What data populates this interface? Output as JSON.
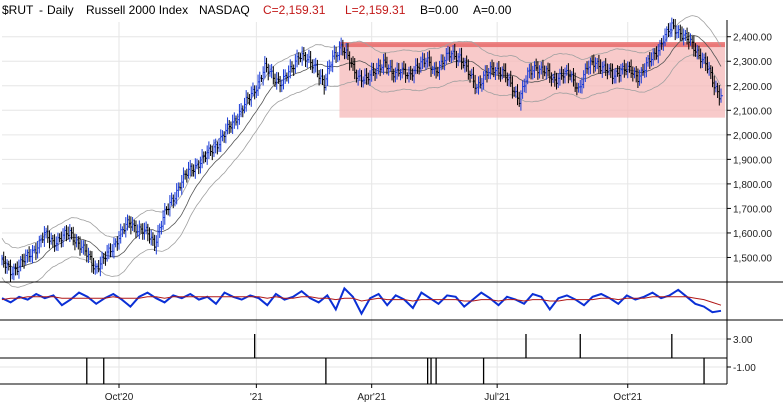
{
  "header": {
    "symbol": "$RUT",
    "sep1": "-",
    "period": "Daily",
    "name": "Russell 2000 Index",
    "exchange": "NASDAQ",
    "close_label": "C=2,159.31",
    "last_label": "L=2,159.31",
    "bid_label": "B=0.00",
    "ask_label": "A=0.00"
  },
  "colors": {
    "bars_up": "#1a3bd6",
    "bars_down": "#000000",
    "band": "#f5b8b8",
    "band_top": "#e86a6a",
    "channel": "#a0a0a0",
    "ma": "#555555",
    "oscillator": "#0a2fd6",
    "signal": "#b01818",
    "grid": "#e6e6e6"
  },
  "chart_data": [
    {
      "type": "line",
      "panel": "price",
      "title": "$RUT - Daily Russell 2000 Index NASDAQ",
      "series": [
        {
          "values": [
            [
              1,
              1480
            ],
            [
              6,
              1440
            ],
            [
              11,
              1470
            ],
            [
              16,
              1500
            ],
            [
              21,
              1540
            ],
            [
              26,
              1590
            ],
            [
              31,
              1565
            ],
            [
              36,
              1580
            ],
            [
              41,
              1600
            ],
            [
              46,
              1560
            ],
            [
              51,
              1510
            ],
            [
              56,
              1460
            ],
            [
              61,
              1490
            ],
            [
              66,
              1540
            ],
            [
              71,
              1600
            ],
            [
              76,
              1640
            ],
            [
              81,
              1620
            ],
            [
              86,
              1600
            ],
            [
              91,
              1560
            ],
            [
              96,
              1660
            ],
            [
              101,
              1730
            ],
            [
              106,
              1800
            ],
            [
              111,
              1850
            ],
            [
              116,
              1880
            ],
            [
              121,
              1910
            ],
            [
              126,
              1950
            ],
            [
              131,
              1990
            ],
            [
              136,
              2040
            ],
            [
              141,
              2090
            ],
            [
              146,
              2140
            ],
            [
              151,
              2200
            ],
            [
              156,
              2270
            ],
            [
              161,
              2240
            ],
            [
              166,
              2210
            ],
            [
              171,
              2260
            ],
            [
              176,
              2330
            ],
            [
              181,
              2300
            ],
            [
              186,
              2280
            ],
            [
              191,
              2200
            ],
            [
              196,
              2320
            ],
            [
              201,
              2360
            ],
            [
              206,
              2300
            ],
            [
              211,
              2240
            ],
            [
              216,
              2220
            ],
            [
              221,
              2270
            ],
            [
              226,
              2290
            ],
            [
              231,
              2250
            ],
            [
              236,
              2270
            ],
            [
              241,
              2230
            ],
            [
              246,
              2290
            ],
            [
              251,
              2300
            ],
            [
              256,
              2260
            ],
            [
              261,
              2300
            ],
            [
              266,
              2330
            ],
            [
              271,
              2320
            ],
            [
              276,
              2250
            ],
            [
              281,
              2200
            ],
            [
              286,
              2240
            ],
            [
              291,
              2270
            ],
            [
              296,
              2260
            ],
            [
              301,
              2200
            ],
            [
              306,
              2150
            ],
            [
              311,
              2240
            ],
            [
              316,
              2280
            ],
            [
              321,
              2260
            ],
            [
              326,
              2220
            ],
            [
              331,
              2250
            ],
            [
              336,
              2240
            ],
            [
              341,
              2190
            ],
            [
              346,
              2270
            ],
            [
              351,
              2300
            ],
            [
              356,
              2270
            ],
            [
              361,
              2240
            ],
            [
              366,
              2270
            ],
            [
              371,
              2260
            ],
            [
              376,
              2240
            ],
            [
              381,
              2280
            ],
            [
              386,
              2330
            ],
            [
              391,
              2390
            ],
            [
              396,
              2440
            ],
            [
              401,
              2420
            ],
            [
              406,
              2380
            ],
            [
              411,
              2340
            ],
            [
              416,
              2290
            ],
            [
              421,
              2200
            ],
            [
              425,
              2159.31
            ]
          ]
        }
      ],
      "ylim": [
        1400,
        2460
      ],
      "y_ticks": [
        "1,500.00",
        "1,600.00",
        "1,700.00",
        "1,800.00",
        "1,900.00",
        "2,000.00",
        "2,100.00",
        "2,200.00",
        "2,300.00",
        "2,400.00"
      ],
      "y_tick_values": [
        1500,
        1600,
        1700,
        1800,
        1900,
        2000,
        2100,
        2200,
        2300,
        2400
      ],
      "x_tick_labels": [
        "Oct'20",
        "'21",
        "Apr'21",
        "Jul'21",
        "Oct'21"
      ],
      "x_tick_index": [
        70,
        151,
        219,
        293,
        370
      ],
      "shaded_range": {
        "y_from": 2070,
        "y_to": 2370,
        "x_from": 200,
        "x_to": 425
      },
      "grid": true
    },
    {
      "type": "line",
      "panel": "oscillator",
      "series": [
        {
          "values": [
            0.2,
            -0.1,
            0.3,
            0.1,
            0.5,
            0.2,
            0.4,
            -0.3,
            0.1,
            0.6,
            0.3,
            -0.2,
            0.2,
            0.5,
            0.1,
            -0.4,
            0.3,
            0.6,
            0.2,
            -0.1,
            0.4,
            0.2,
            0.5,
            0.1,
            0.3,
            -0.2,
            0.6,
            0.3,
            0.1,
            0.4,
            0.2,
            -0.3,
            0.5,
            0.1,
            0.3,
            0.7,
            0.2,
            -0.1,
            0.4,
            -0.6,
            0.9,
            0.3,
            -0.9,
            0.2,
            0.5,
            -0.3,
            0.4,
            0.1,
            -0.5,
            0.6,
            0.2,
            -0.2,
            0.4,
            0.3,
            -0.4,
            0.1,
            0.6,
            0.2,
            -0.3,
            0.3,
            0.1,
            -0.2,
            0.5,
            0.3,
            -0.6,
            0.2,
            0.4,
            0.1,
            -0.3,
            0.3,
            0.5,
            0.2,
            -0.2,
            0.4,
            0.1,
            0.3,
            0.6,
            0.2,
            0.4,
            0.8,
            0.3,
            -0.2,
            -0.4,
            -0.8,
            -0.7
          ]
        },
        {
          "values": [
            0.1,
            0.2,
            0.2,
            0.3,
            0.3,
            0.3,
            0.3,
            0.2,
            0.2,
            0.2,
            0.2,
            0.2,
            0.2,
            0.3,
            0.2,
            0.2,
            0.2,
            0.3,
            0.3,
            0.2,
            0.3,
            0.3,
            0.3,
            0.3,
            0.3,
            0.3,
            0.3,
            0.3,
            0.3,
            0.3,
            0.3,
            0.2,
            0.3,
            0.2,
            0.2,
            0.3,
            0.3,
            0.2,
            0.2,
            0.1,
            0.2,
            0.2,
            0.0,
            0.1,
            0.2,
            0.1,
            0.1,
            0.1,
            0.0,
            0.1,
            0.1,
            0.1,
            0.1,
            0.1,
            0.0,
            0.0,
            0.1,
            0.1,
            0.0,
            0.1,
            0.1,
            0.0,
            0.1,
            0.1,
            0.0,
            0.0,
            0.1,
            0.1,
            0.1,
            0.1,
            0.2,
            0.2,
            0.1,
            0.2,
            0.2,
            0.2,
            0.3,
            0.3,
            0.3,
            0.3,
            0.3,
            0.2,
            0.1,
            -0.1,
            -0.3
          ]
        }
      ]
    },
    {
      "type": "bar",
      "panel": "spikes",
      "y_ticks": [
        "3.00",
        "-1.00"
      ],
      "spikes": [
        {
          "x": 51,
          "dir": "down"
        },
        {
          "x": 61,
          "dir": "down"
        },
        {
          "x": 150,
          "dir": "up"
        },
        {
          "x": 192,
          "dir": "down"
        },
        {
          "x": 252,
          "dir": "down"
        },
        {
          "x": 254,
          "dir": "down"
        },
        {
          "x": 257,
          "dir": "down"
        },
        {
          "x": 285,
          "dir": "down"
        },
        {
          "x": 310,
          "dir": "up"
        },
        {
          "x": 342,
          "dir": "up"
        },
        {
          "x": 396,
          "dir": "up"
        },
        {
          "x": 415,
          "dir": "down"
        }
      ]
    }
  ]
}
